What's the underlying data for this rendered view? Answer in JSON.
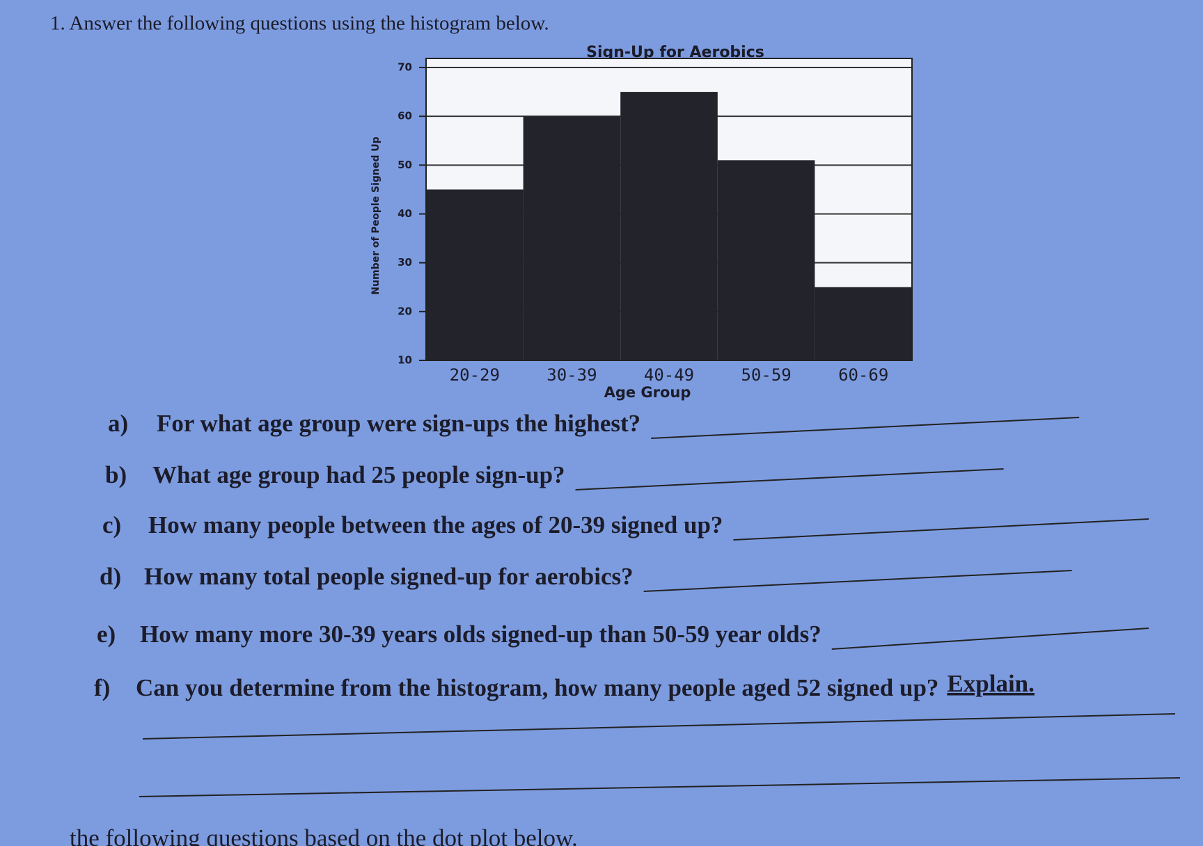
{
  "header": {
    "text": "1. Answer the following questions using the histogram below."
  },
  "chart_data": {
    "type": "histogram",
    "title": "Sign-Up for Aerobics",
    "x_label": "Age Group",
    "y_label": "Number of People Signed Up",
    "categories": [
      "20-29",
      "30-39",
      "40-49",
      "50-59",
      "60-69"
    ],
    "values": [
      45,
      60,
      65,
      51,
      25
    ],
    "color": "#23232c",
    "ylim": [
      10,
      70
    ],
    "yticks": [
      10,
      20,
      30,
      40,
      50,
      60,
      70
    ],
    "grid": true
  },
  "questions": [
    {
      "letter": "a)",
      "text": "For what age group were sign-ups the highest?"
    },
    {
      "letter": "b)",
      "text": "What age group had 25 people sign-up?"
    },
    {
      "letter": "c)",
      "text": "How many people between the ages of 20-39 signed up?"
    },
    {
      "letter": "d)",
      "text": "How many total people signed-up for aerobics?"
    },
    {
      "letter": "e)",
      "text": "How many more 30-39 years olds signed-up than 50-59 year olds?"
    },
    {
      "letter": "f)",
      "text": "Can you determine from the histogram, how many people aged 52 signed up?",
      "emphasis": "Explain."
    }
  ],
  "footer": {
    "text": "the following questions based on the dot plot below."
  }
}
